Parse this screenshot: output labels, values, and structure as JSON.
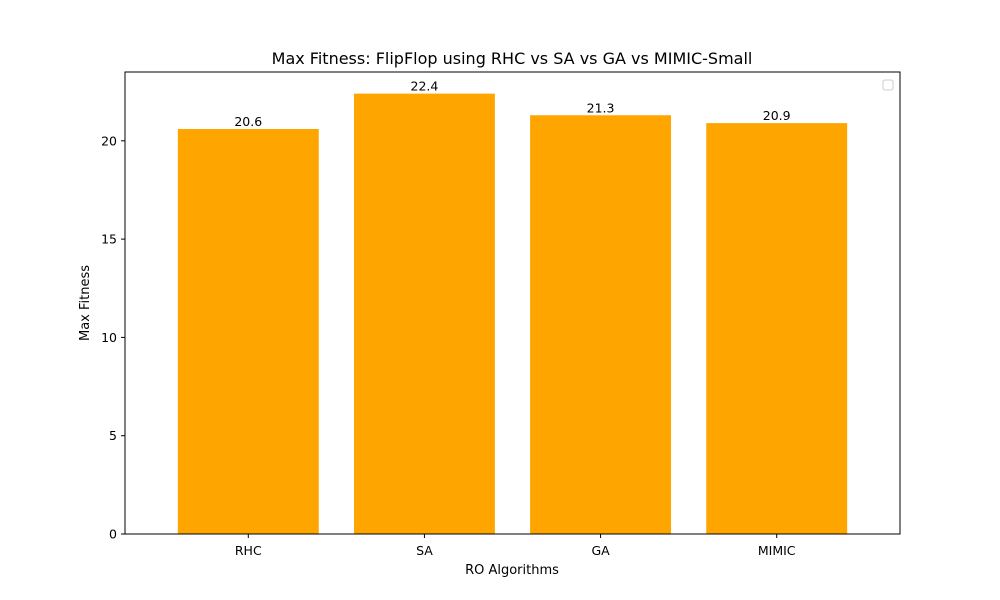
{
  "chart_data": {
    "type": "bar",
    "title": "Max Fitness: FlipFlop using RHC vs SA vs GA vs MIMIC-Small",
    "xlabel": "RO Algorithms",
    "ylabel": "Max Fitness",
    "categories": [
      "RHC",
      "SA",
      "GA",
      "MIMIC"
    ],
    "values": [
      20.6,
      22.4,
      21.3,
      20.9
    ],
    "data_labels": [
      "20.6",
      "22.4",
      "21.3",
      "20.9"
    ],
    "ylim": [
      0,
      23.5
    ],
    "yticks": [
      0,
      5,
      10,
      15,
      20
    ],
    "ytick_labels": [
      "0",
      "5",
      "10",
      "15",
      "20"
    ],
    "bar_color": "#FFA500",
    "grid": false,
    "legend": {
      "placement": "upper right",
      "entries": []
    }
  }
}
